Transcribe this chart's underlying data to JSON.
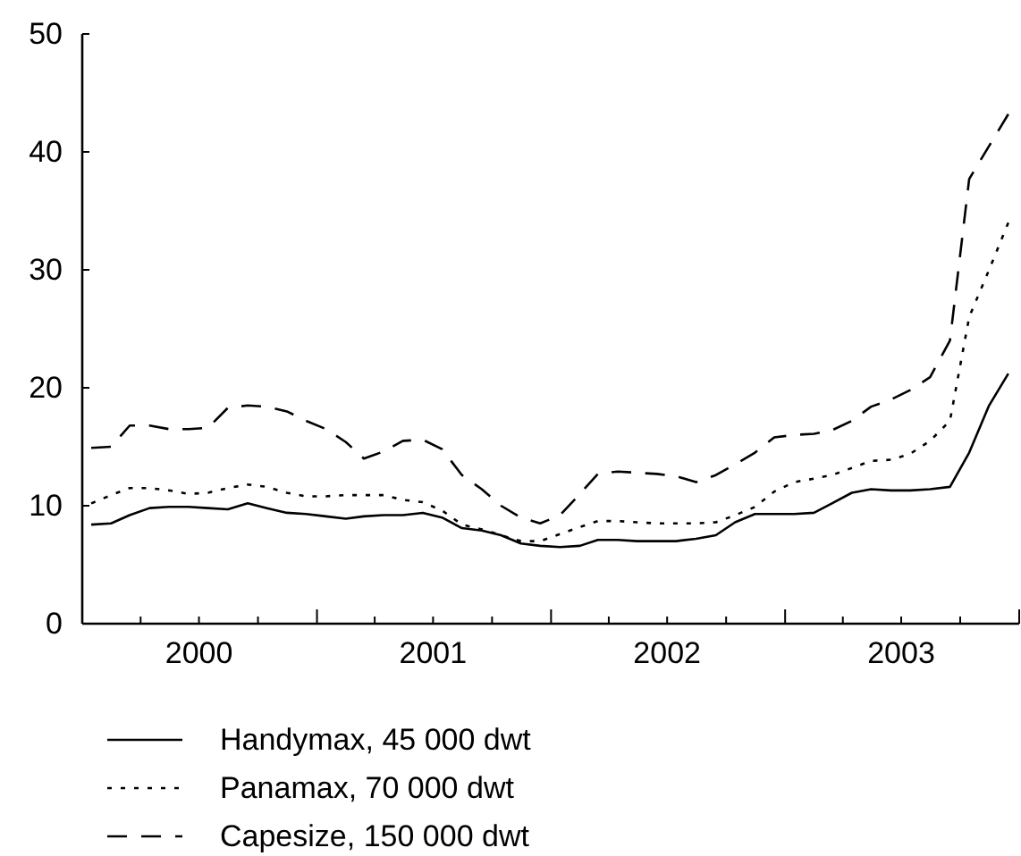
{
  "chart_data": {
    "type": "line",
    "x": [
      "2000-01-15",
      "2000-02-15",
      "2000-03-15",
      "2000-04-15",
      "2000-05-15",
      "2000-06-15",
      "2000-07-15",
      "2000-08-15",
      "2000-09-15",
      "2000-10-15",
      "2000-11-15",
      "2000-12-15",
      "2001-01-15",
      "2001-02-15",
      "2001-03-15",
      "2001-04-15",
      "2001-05-15",
      "2001-06-15",
      "2001-07-15",
      "2001-08-15",
      "2001-09-15",
      "2001-10-15",
      "2001-11-15",
      "2001-12-15",
      "2002-01-15",
      "2002-02-15",
      "2002-03-15",
      "2002-04-15",
      "2002-05-15",
      "2002-06-15",
      "2002-07-15",
      "2002-08-15",
      "2002-09-15",
      "2002-10-15",
      "2002-11-15",
      "2002-12-15",
      "2003-01-15",
      "2003-02-15",
      "2003-03-15",
      "2003-04-15",
      "2003-05-15",
      "2003-06-15",
      "2003-07-15",
      "2003-08-15",
      "2003-09-15",
      "2003-10-15",
      "2003-11-15",
      "2003-12-15"
    ],
    "series": [
      {
        "name": "Handymax, 45 000 dwt",
        "color": "#000000",
        "line_style": "solid",
        "values": [
          8.4,
          8.5,
          9.2,
          9.8,
          9.9,
          9.9,
          9.8,
          9.7,
          10.2,
          9.8,
          9.4,
          9.3,
          9.1,
          8.9,
          9.1,
          9.2,
          9.2,
          9.4,
          9.0,
          8.1,
          7.9,
          7.5,
          6.8,
          6.6,
          6.5,
          6.6,
          7.1,
          7.1,
          7.0,
          7.0,
          7.0,
          7.2,
          7.5,
          8.6,
          9.3,
          9.3,
          9.3,
          9.4,
          10.2,
          11.1,
          11.4,
          11.3,
          11.3,
          11.4,
          11.6,
          14.5,
          18.5,
          21.2
        ]
      },
      {
        "name": "Panamax, 70 000 dwt",
        "color": "#000000",
        "line_style": "dotted",
        "values": [
          10.2,
          10.9,
          11.5,
          11.5,
          11.3,
          11.0,
          11.1,
          11.5,
          11.8,
          11.6,
          11.1,
          10.8,
          10.8,
          10.9,
          10.9,
          10.9,
          10.5,
          10.3,
          9.6,
          8.4,
          8.0,
          7.5,
          7.0,
          7.0,
          7.6,
          8.2,
          8.7,
          8.7,
          8.6,
          8.5,
          8.5,
          8.5,
          8.6,
          9.2,
          9.9,
          11.2,
          12.0,
          12.3,
          12.6,
          13.2,
          13.8,
          13.9,
          14.4,
          15.5,
          17.2,
          26.0,
          30.0,
          34.0
        ]
      },
      {
        "name": "Capesize, 150 000 dwt",
        "color": "#000000",
        "line_style": "dashed",
        "values": [
          14.9,
          15.0,
          16.8,
          16.8,
          16.5,
          16.5,
          16.6,
          18.3,
          18.5,
          18.4,
          18.0,
          17.2,
          16.5,
          15.4,
          14.0,
          14.6,
          15.5,
          15.6,
          14.8,
          12.6,
          11.4,
          10.0,
          9.0,
          8.5,
          9.2,
          11.0,
          12.7,
          12.9,
          12.8,
          12.7,
          12.5,
          12.0,
          12.6,
          13.5,
          14.5,
          15.8,
          16.0,
          16.1,
          16.4,
          17.2,
          18.4,
          19.0,
          19.8,
          20.9,
          24.0,
          37.7,
          40.5,
          43.2
        ]
      }
    ],
    "xlim": [
      "2000-01-01",
      "2004-01-01"
    ],
    "xticks": [
      {
        "value": "2000-01-01",
        "label": null
      },
      {
        "value": "2000-04-01",
        "label": null
      },
      {
        "value": "2000-07-01",
        "label": "2000"
      },
      {
        "value": "2000-10-01",
        "label": null
      },
      {
        "value": "2001-01-01",
        "label": null
      },
      {
        "value": "2001-04-01",
        "label": null
      },
      {
        "value": "2001-07-01",
        "label": "2001"
      },
      {
        "value": "2001-10-01",
        "label": null
      },
      {
        "value": "2002-01-01",
        "label": null
      },
      {
        "value": "2002-04-01",
        "label": null
      },
      {
        "value": "2002-07-01",
        "label": "2002"
      },
      {
        "value": "2002-10-01",
        "label": null
      },
      {
        "value": "2003-01-01",
        "label": null
      },
      {
        "value": "2003-04-01",
        "label": null
      },
      {
        "value": "2003-07-01",
        "label": "2003"
      },
      {
        "value": "2003-10-01",
        "label": null
      },
      {
        "value": "2004-01-01",
        "label": null
      }
    ],
    "ylim": [
      0,
      50
    ],
    "yticks": [
      0,
      10,
      20,
      30,
      40,
      50
    ],
    "grid": false,
    "legend": "bottom"
  }
}
